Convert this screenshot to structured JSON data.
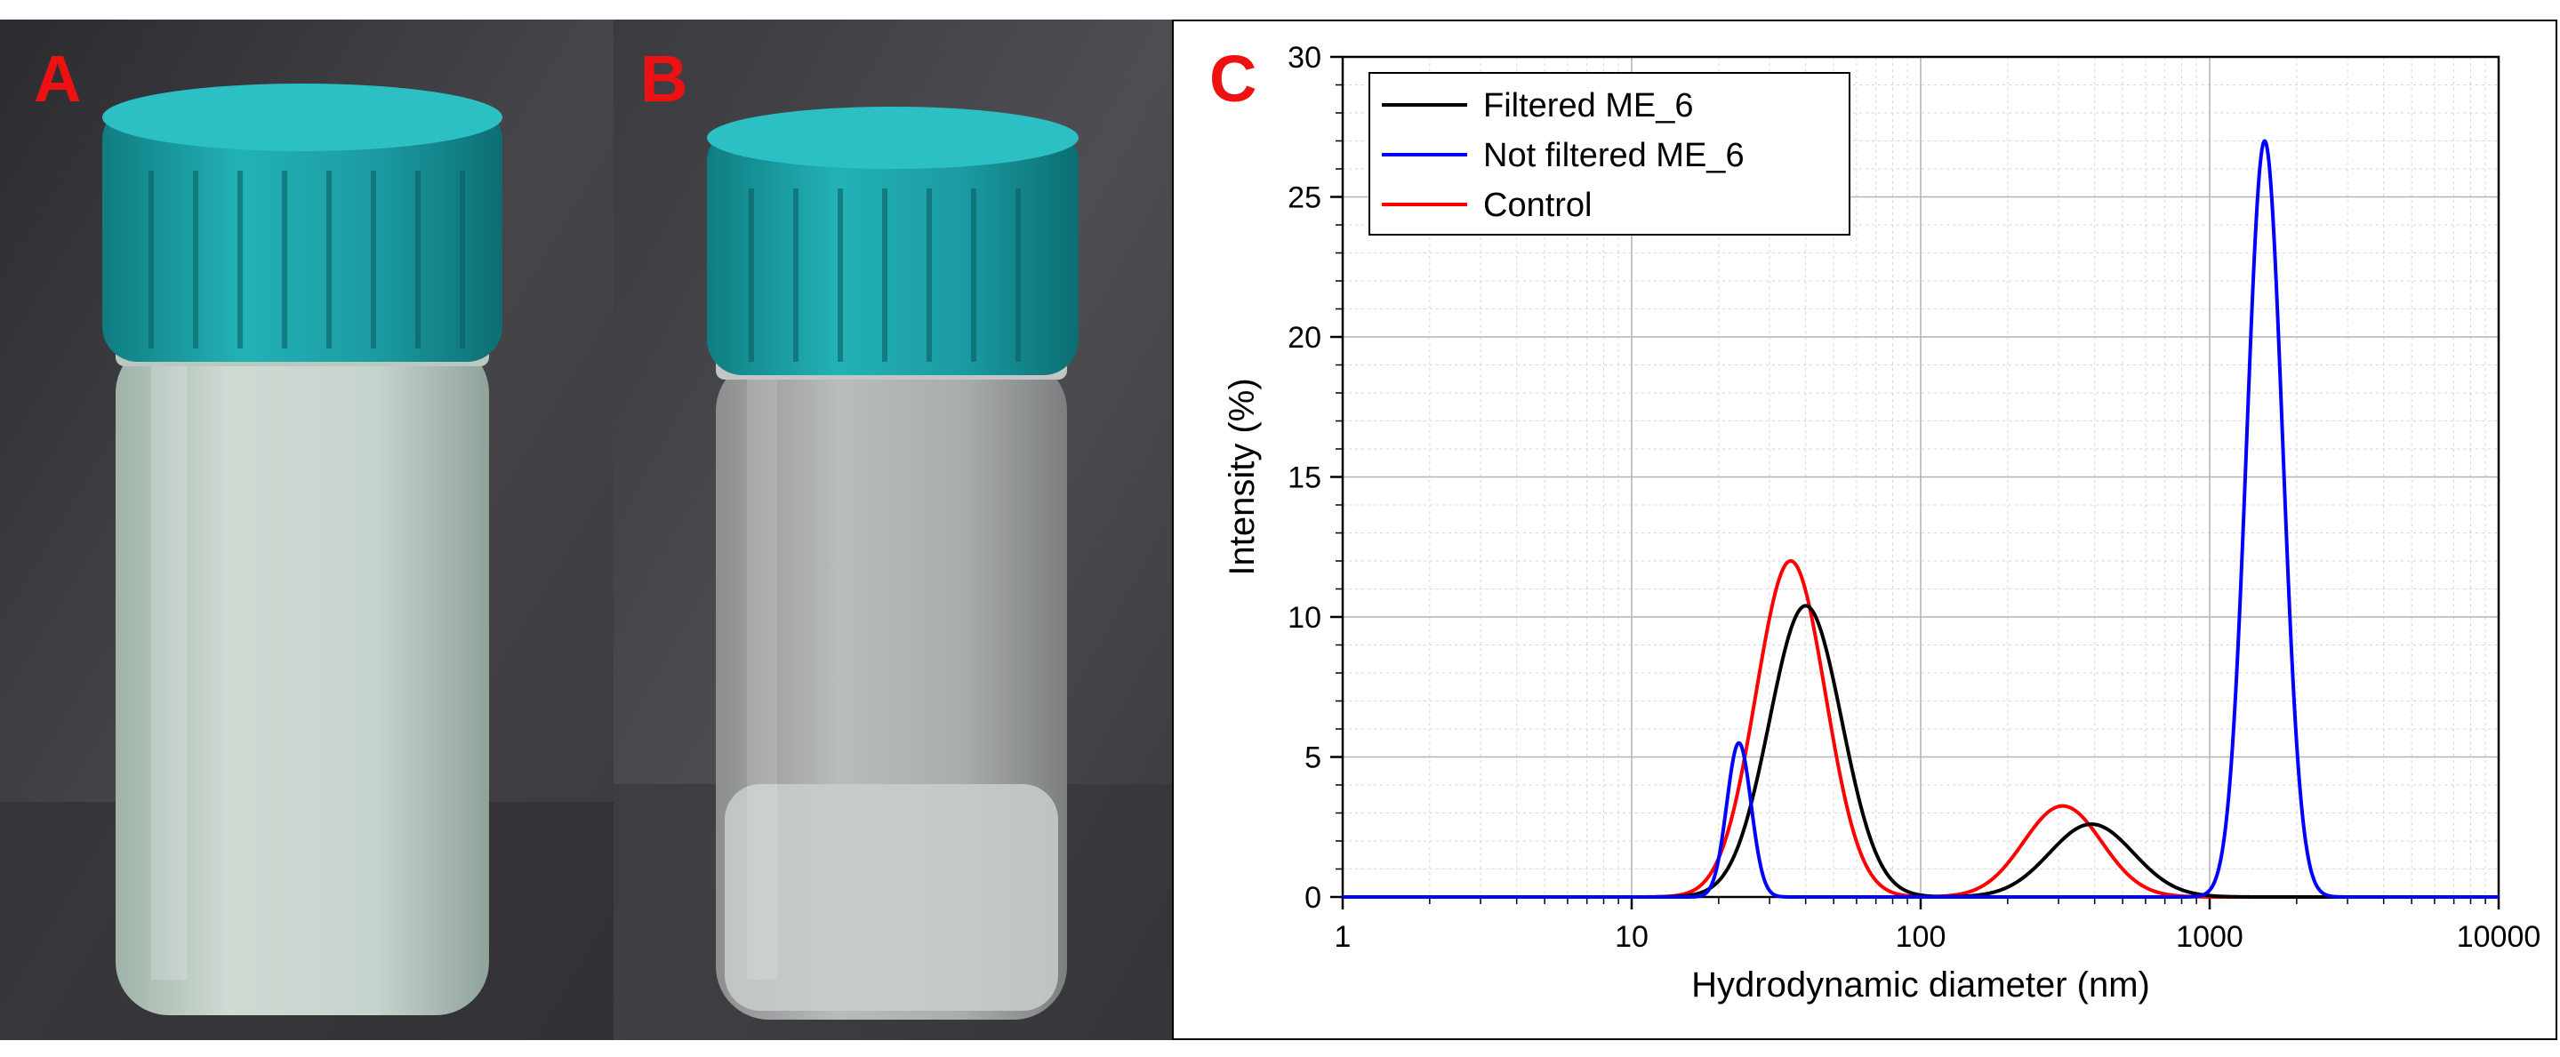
{
  "panels": {
    "a": {
      "letter": "A"
    },
    "b": {
      "letter": "B"
    },
    "c": {
      "letter": "C"
    }
  },
  "colors": {
    "cap": "#1a9aa0",
    "background_dark": "#3a3a3e",
    "letter": "#ee1111"
  },
  "chart_data": {
    "type": "line",
    "xscale": "log",
    "xlabel": "Hydrodynamic diameter (nm)",
    "ylabel": "Intensity (%)",
    "xlim": [
      1,
      10000
    ],
    "ylim": [
      0,
      30
    ],
    "xticks": [
      1,
      10,
      100,
      1000,
      10000
    ],
    "xtick_labels": [
      "1",
      "10",
      "100",
      "1000",
      "10000"
    ],
    "yticks": [
      0,
      5,
      10,
      15,
      20,
      25,
      30
    ],
    "ytick_labels": [
      "0",
      "5",
      "10",
      "15",
      "20",
      "25",
      "30"
    ],
    "grid": true,
    "legend_position": "top-left",
    "series": [
      {
        "name": "Filtered ME_6",
        "color": "#000000",
        "peaks": [
          {
            "center": 40,
            "height": 10.4,
            "log_sigma": 0.125
          },
          {
            "center": 390,
            "height": 2.6,
            "log_sigma": 0.145
          }
        ]
      },
      {
        "name": "Not filtered ME_6",
        "color": "#0000ff",
        "peaks": [
          {
            "center": 23.5,
            "height": 5.5,
            "log_sigma": 0.042
          },
          {
            "center": 1550,
            "height": 27.0,
            "log_sigma": 0.062
          }
        ]
      },
      {
        "name": "Control",
        "color": "#ff0000",
        "peaks": [
          {
            "center": 35.5,
            "height": 12.0,
            "log_sigma": 0.12
          },
          {
            "center": 310,
            "height": 3.25,
            "log_sigma": 0.135
          }
        ]
      }
    ]
  }
}
